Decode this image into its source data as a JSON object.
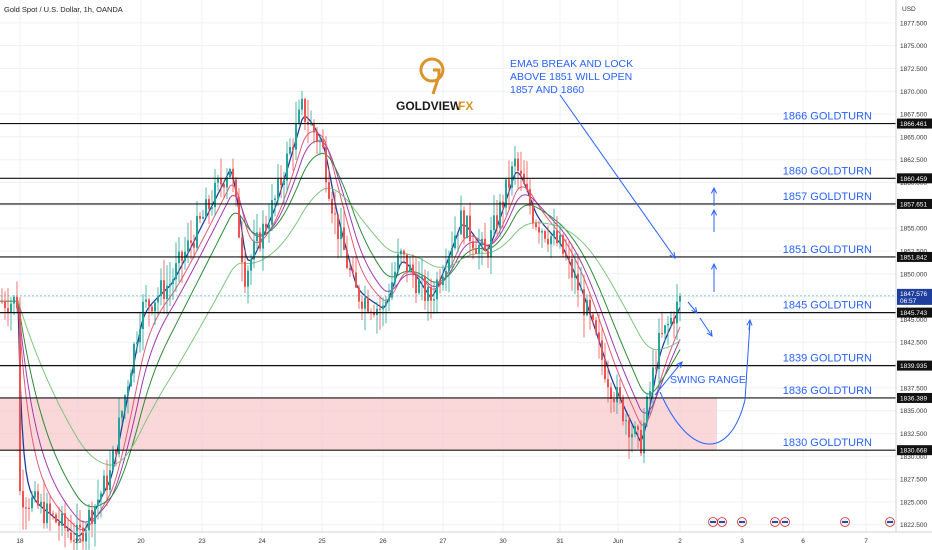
{
  "header": {
    "symbol_title": "Gold Spot / U.S. Dollar, 1h, OANDA",
    "currency": "USD"
  },
  "logo": {
    "text_main": "GOLDVIEW",
    "text_accent": "FX"
  },
  "annotation": {
    "lines": [
      "EMA5 BREAK AND LOCK",
      "ABOVE 1851 WILL OPEN",
      "1857 AND 1860"
    ],
    "swing_range": "SWING RANGE"
  },
  "colors": {
    "accent_blue": "#2962ff",
    "candle_up": "#26a69a",
    "candle_down": "#ef5350",
    "zone_fill": "#f8c9cc",
    "ema_blue": "#1f3f9e",
    "ema_green": "#2e8b3a",
    "ema_pink": "#e05a7a",
    "ema_purple": "#a03ab0",
    "ema_lightgreen": "#7fc47f",
    "logo_gold": "#d9942a"
  },
  "chart_data": {
    "type": "line",
    "title": "Gold Spot / U.S. Dollar, 1h, OANDA",
    "xlabel": "",
    "ylabel": "USD",
    "ylim": [
      1821.7,
      1880.0
    ],
    "grid": true,
    "x_ticks": [
      "18",
      "19",
      "20",
      "23",
      "24",
      "25",
      "26",
      "27",
      "30",
      "31",
      "Jun",
      "2",
      "3",
      "6",
      "7"
    ],
    "y_ticks": [
      "1822.500",
      "1825.000",
      "1827.500",
      "1830.000",
      "1832.500",
      "1835.000",
      "1837.500",
      "1840.000",
      "1842.500",
      "1845.000",
      "1847.500",
      "1850.000",
      "1852.500",
      "1855.000",
      "1857.500",
      "1860.000",
      "1862.500",
      "1865.000",
      "1867.500",
      "1870.000",
      "1872.500",
      "1875.000",
      "1877.500"
    ],
    "levels": [
      {
        "value": 1866.461,
        "price_tag": "1866.461",
        "label": "1866 GOLDTURN"
      },
      {
        "value": 1860.459,
        "price_tag": "1860.459",
        "label": "1860 GOLDTURN"
      },
      {
        "value": 1857.651,
        "price_tag": "1857.651",
        "label": "1857 GOLDTURN"
      },
      {
        "value": 1851.842,
        "price_tag": "1851.842",
        "label": "1851 GOLDTURN"
      },
      {
        "value": 1845.743,
        "price_tag": "1845.743",
        "label": "1845 GOLDTURN"
      },
      {
        "value": 1839.935,
        "price_tag": "1839.935",
        "label": "1839 GOLDTURN"
      },
      {
        "value": 1836.389,
        "price_tag": "1836.389",
        "label": "1836 GOLDTURN"
      },
      {
        "value": 1830.668,
        "price_tag": "1830.668",
        "label": "1830 GOLDTURN"
      }
    ],
    "current_price": {
      "value": 1847.576,
      "price_tag": "1847.576",
      "countdown": "06:57"
    },
    "zone": {
      "from": 1830.668,
      "to": 1836.389
    },
    "price_path_anchors": [
      [
        "18",
        1826
      ],
      [
        "19",
        1821
      ],
      [
        "19.5",
        1828
      ],
      [
        "20",
        1846
      ],
      [
        "20.5",
        1849
      ],
      [
        "23",
        1862
      ],
      [
        "23.3",
        1850
      ],
      [
        "24",
        1858
      ],
      [
        "24.5",
        1868
      ],
      [
        "25",
        1864
      ],
      [
        "25.3",
        1856
      ],
      [
        "25.8",
        1848
      ],
      [
        "26",
        1846
      ],
      [
        "26.5",
        1852
      ],
      [
        "27",
        1847
      ],
      [
        "27.5",
        1856
      ],
      [
        "28",
        1852
      ],
      [
        "30",
        1862
      ],
      [
        "30.5",
        1856
      ],
      [
        "31",
        1853
      ],
      [
        "31.5",
        1848
      ],
      [
        "Jun",
        1838
      ],
      [
        "Jun.3",
        1831
      ],
      [
        "Jun.6",
        1842
      ],
      [
        "2",
        1847
      ]
    ]
  }
}
